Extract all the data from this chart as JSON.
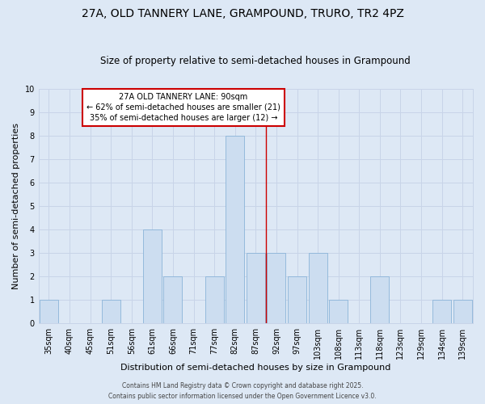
{
  "title1": "27A, OLD TANNERY LANE, GRAMPOUND, TRURO, TR2 4PZ",
  "title2": "Size of property relative to semi-detached houses in Grampound",
  "xlabel": "Distribution of semi-detached houses by size in Grampound",
  "ylabel": "Number of semi-detached properties",
  "bar_labels": [
    "35sqm",
    "40sqm",
    "45sqm",
    "51sqm",
    "56sqm",
    "61sqm",
    "66sqm",
    "71sqm",
    "77sqm",
    "82sqm",
    "87sqm",
    "92sqm",
    "97sqm",
    "103sqm",
    "108sqm",
    "113sqm",
    "118sqm",
    "123sqm",
    "129sqm",
    "134sqm",
    "139sqm"
  ],
  "bar_values": [
    1,
    0,
    0,
    1,
    0,
    4,
    2,
    0,
    2,
    8,
    3,
    3,
    2,
    3,
    1,
    0,
    2,
    0,
    0,
    1,
    1
  ],
  "bar_color": "#ccddf0",
  "bar_edge_color": "#8ab4d8",
  "reference_line_x": 10.5,
  "reference_line_color": "#cc0000",
  "ylim": [
    0,
    10
  ],
  "yticks": [
    0,
    1,
    2,
    3,
    4,
    5,
    6,
    7,
    8,
    9,
    10
  ],
  "annotation_title": "27A OLD TANNERY LANE: 90sqm",
  "annotation_line1": "← 62% of semi-detached houses are smaller (21)",
  "annotation_line2": "35% of semi-detached houses are larger (12) →",
  "annotation_box_color": "#cc0000",
  "grid_color": "#c8d4e8",
  "background_color": "#dde8f5",
  "fig_background_color": "#dde8f5",
  "footer1": "Contains HM Land Registry data © Crown copyright and database right 2025.",
  "footer2": "Contains public sector information licensed under the Open Government Licence v3.0.",
  "title1_fontsize": 10,
  "title2_fontsize": 8.5,
  "axis_label_fontsize": 8,
  "tick_fontsize": 7,
  "annotation_fontsize": 7,
  "footer_fontsize": 5.5
}
